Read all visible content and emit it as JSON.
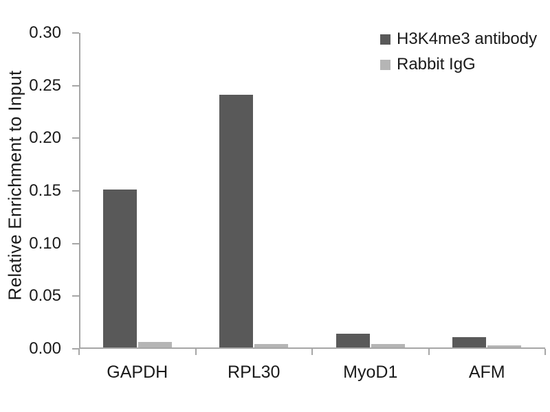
{
  "chart_data": {
    "type": "bar",
    "title": "",
    "xlabel": "",
    "ylabel": "Relative Enrichment to Input",
    "categories": [
      "GAPDH",
      "RPL30",
      "MyoD1",
      "AFM"
    ],
    "series": [
      {
        "name": "H3K4me3 antibody",
        "color": "#595959",
        "values": [
          0.15,
          0.24,
          0.013,
          0.01
        ]
      },
      {
        "name": "Rabbit IgG",
        "color": "#b5b5b5",
        "values": [
          0.005,
          0.003,
          0.003,
          0.002
        ]
      }
    ],
    "ylim": [
      0,
      0.3
    ],
    "ytick_step": 0.05,
    "ytick_labels": [
      "0.00",
      "0.05",
      "0.10",
      "0.15",
      "0.20",
      "0.25",
      "0.30"
    ],
    "grid": false,
    "legend_position": "top-right",
    "axis_color": "#a6a6a6",
    "text_color": "#1a1a1a",
    "background_color": "#ffffff"
  }
}
